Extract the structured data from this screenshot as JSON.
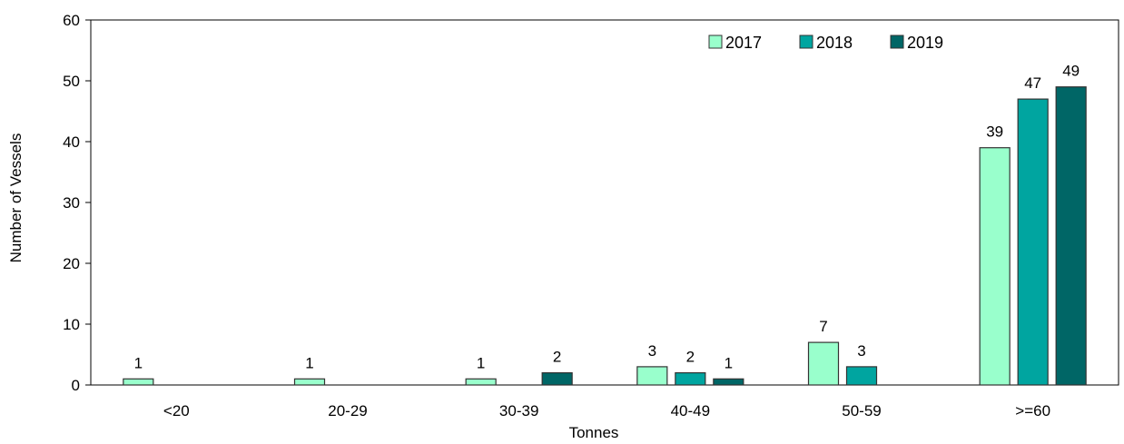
{
  "chart_data": {
    "type": "bar",
    "title": "",
    "xlabel": "Tonnes",
    "ylabel": "Number of Vessels",
    "ylim": [
      0,
      60
    ],
    "yticks": [
      "0",
      "10",
      "20",
      "30",
      "40",
      "50",
      "60"
    ],
    "categories": [
      "<20",
      "20-29",
      "30-39",
      "40-49",
      "50-59",
      ">=60"
    ],
    "series": [
      {
        "name": "2017",
        "color": "#99ffcc",
        "values": [
          1,
          1,
          1,
          3,
          7,
          39
        ]
      },
      {
        "name": "2018",
        "color": "#00a5a0",
        "values": [
          null,
          null,
          null,
          2,
          3,
          47
        ]
      },
      {
        "name": "2019",
        "color": "#006666",
        "values": [
          null,
          null,
          2,
          1,
          null,
          49
        ]
      }
    ],
    "legend_position": "top-right",
    "grid": false
  }
}
